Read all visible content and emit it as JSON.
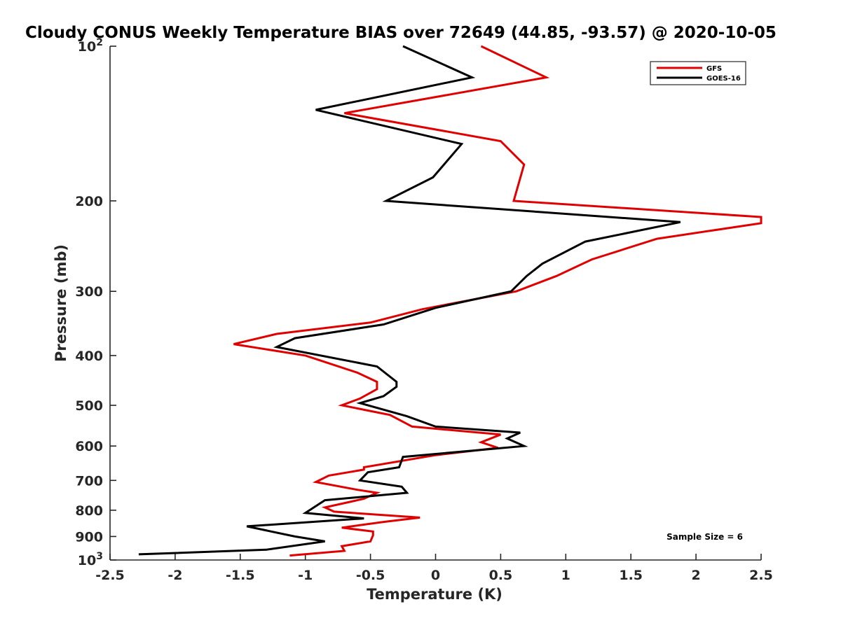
{
  "chart_data": {
    "type": "line",
    "title": "Cloudy CONUS Weekly Temperature BIAS over 72649 (44.85, -93.57) @ 2020-10-05",
    "xlabel": "Temperature (K)",
    "ylabel": "Pressure (mb)",
    "xlim": [
      -2.5,
      2.5
    ],
    "ylim": [
      100,
      1000
    ],
    "y_scale": "log",
    "y_reversed": true,
    "grid": false,
    "legend_position": "top-right",
    "x_ticks": [
      -2.5,
      -2,
      -1.5,
      -1,
      -0.5,
      0,
      0.5,
      1,
      1.5,
      2,
      2.5
    ],
    "x_tick_labels": [
      "-2.5",
      "-2",
      "-1.5",
      "-1",
      "-0.5",
      "0",
      "0.5",
      "1",
      "1.5",
      "2",
      "2.5"
    ],
    "y_ticks": [
      200,
      300,
      400,
      500,
      600,
      700,
      800,
      900
    ],
    "y_tick_labels": [
      "200",
      "300",
      "400",
      "500",
      "600",
      "700",
      "800",
      "900"
    ],
    "y_extreme_ticks": [
      {
        "value": 100,
        "base": "10",
        "exp": "2"
      },
      {
        "value": 1000,
        "base": "10",
        "exp": "3"
      }
    ],
    "annotation": "Sample Size = 6",
    "series": [
      {
        "name": "GFS",
        "color": "#e00000",
        "points": [
          [
            0.35,
            100
          ],
          [
            0.85,
            115
          ],
          [
            -0.7,
            135
          ],
          [
            0.5,
            153
          ],
          [
            0.68,
            170
          ],
          [
            0.6,
            200
          ],
          [
            2.5,
            215
          ],
          [
            2.5,
            221
          ],
          [
            1.7,
            237
          ],
          [
            1.2,
            260
          ],
          [
            0.93,
            280
          ],
          [
            0.62,
            300
          ],
          [
            -0.1,
            325
          ],
          [
            -0.5,
            345
          ],
          [
            -1.22,
            363
          ],
          [
            -1.55,
            380
          ],
          [
            -1.0,
            400
          ],
          [
            -0.6,
            432
          ],
          [
            -0.45,
            450
          ],
          [
            -0.45,
            465
          ],
          [
            -0.58,
            485
          ],
          [
            -0.72,
            500
          ],
          [
            -0.35,
            522
          ],
          [
            -0.18,
            550
          ],
          [
            0.5,
            570
          ],
          [
            0.35,
            590
          ],
          [
            0.48,
            605
          ],
          [
            0.0,
            625
          ],
          [
            -0.55,
            660
          ],
          [
            -0.55,
            667
          ],
          [
            -0.82,
            685
          ],
          [
            -0.92,
            705
          ],
          [
            -0.6,
            730
          ],
          [
            -0.45,
            740
          ],
          [
            -0.55,
            760
          ],
          [
            -0.85,
            790
          ],
          [
            -0.78,
            805
          ],
          [
            -0.12,
            827
          ],
          [
            -0.4,
            843
          ],
          [
            -0.72,
            865
          ],
          [
            -0.48,
            880
          ],
          [
            -0.48,
            895
          ],
          [
            -0.5,
            920
          ],
          [
            -0.72,
            940
          ],
          [
            -0.7,
            960
          ],
          [
            -1.12,
            980
          ]
        ]
      },
      {
        "name": "GOES-16",
        "color": "#000000",
        "points": [
          [
            -0.25,
            100
          ],
          [
            0.28,
            115
          ],
          [
            -0.92,
            133
          ],
          [
            0.2,
            155
          ],
          [
            -0.02,
            180
          ],
          [
            -0.38,
            200
          ],
          [
            1.88,
            220
          ],
          [
            1.15,
            240
          ],
          [
            0.82,
            265
          ],
          [
            0.7,
            280
          ],
          [
            0.58,
            300
          ],
          [
            0.0,
            323
          ],
          [
            -0.4,
            348
          ],
          [
            -1.08,
            370
          ],
          [
            -1.22,
            385
          ],
          [
            -0.45,
            420
          ],
          [
            -0.3,
            450
          ],
          [
            -0.3,
            460
          ],
          [
            -0.4,
            480
          ],
          [
            -0.58,
            495
          ],
          [
            -0.22,
            525
          ],
          [
            0.0,
            550
          ],
          [
            0.65,
            565
          ],
          [
            0.55,
            580
          ],
          [
            0.68,
            600
          ],
          [
            -0.25,
            630
          ],
          [
            -0.28,
            660
          ],
          [
            -0.52,
            675
          ],
          [
            -0.58,
            700
          ],
          [
            -0.26,
            720
          ],
          [
            -0.22,
            740
          ],
          [
            -0.85,
            765
          ],
          [
            -1.0,
            810
          ],
          [
            -0.55,
            830
          ],
          [
            -1.45,
            860
          ],
          [
            -1.08,
            900
          ],
          [
            -0.85,
            920
          ],
          [
            -1.3,
            955
          ],
          [
            -2.28,
            975
          ]
        ]
      }
    ]
  }
}
